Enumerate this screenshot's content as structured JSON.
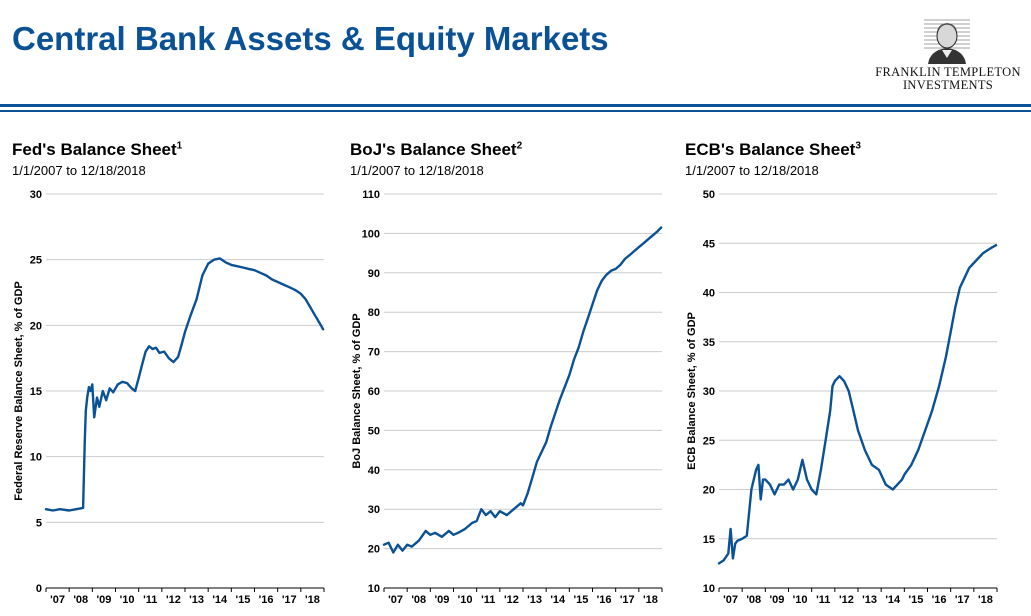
{
  "page_title": "Central Bank Assets & Equity Markets",
  "logo": {
    "line1": "FRANKLIN TEMPLETON",
    "line2": "INVESTMENTS",
    "icon": "franklin-portrait-icon"
  },
  "colors": {
    "accent": "#0a5195",
    "grid": "#cccccc"
  },
  "chart_data": [
    {
      "type": "line",
      "title": "Fed's Balance Sheet",
      "footnote": "1",
      "subtitle": "1/1/2007 to 12/18/2018",
      "xlabel": "",
      "ylabel": "Federal Reserve Balance Sheet, % of GDP",
      "xlim": [
        2007.0,
        2019.0
      ],
      "ylim": [
        0,
        30
      ],
      "yticks": [
        0,
        5,
        10,
        15,
        20,
        25,
        30
      ],
      "xtick_labels": [
        "'07",
        "'08",
        "'09",
        "'10",
        "'11",
        "'12",
        "'13",
        "'14",
        "'15",
        "'16",
        "'17",
        "'18"
      ],
      "grid": true,
      "series": [
        {
          "x": [
            2007.0,
            2007.3,
            2007.6,
            2008.0,
            2008.3,
            2008.6,
            2008.67,
            2008.72,
            2008.78,
            2008.85,
            2008.92,
            2009.0,
            2009.08,
            2009.2,
            2009.3,
            2009.45,
            2009.6,
            2009.75,
            2009.9,
            2010.1,
            2010.3,
            2010.5,
            2010.7,
            2010.85,
            2011.0,
            2011.15,
            2011.3,
            2011.45,
            2011.6,
            2011.75,
            2011.9,
            2012.1,
            2012.3,
            2012.5,
            2012.7,
            2012.85,
            2013.0,
            2013.25,
            2013.5,
            2013.75,
            2014.0,
            2014.25,
            2014.5,
            2014.75,
            2015.0,
            2015.25,
            2015.5,
            2015.75,
            2016.0,
            2016.25,
            2016.5,
            2016.75,
            2017.0,
            2017.25,
            2017.5,
            2017.75,
            2018.0,
            2018.2,
            2018.4,
            2018.6,
            2018.8,
            2018.96
          ],
          "values": [
            6.0,
            5.9,
            6.0,
            5.9,
            6.0,
            6.1,
            11.0,
            13.5,
            14.5,
            15.3,
            15.0,
            15.5,
            13.0,
            14.5,
            13.8,
            15.0,
            14.3,
            15.2,
            14.9,
            15.5,
            15.7,
            15.6,
            15.2,
            15.0,
            16.0,
            17.0,
            18.0,
            18.4,
            18.2,
            18.3,
            17.9,
            18.0,
            17.5,
            17.2,
            17.6,
            18.5,
            19.5,
            20.8,
            22.0,
            23.8,
            24.7,
            25.0,
            25.1,
            24.8,
            24.6,
            24.5,
            24.4,
            24.3,
            24.2,
            24.0,
            23.8,
            23.5,
            23.3,
            23.1,
            22.9,
            22.7,
            22.4,
            22.0,
            21.4,
            20.8,
            20.2,
            19.7
          ]
        }
      ]
    },
    {
      "type": "line",
      "title": "BoJ's Balance Sheet",
      "footnote": "2",
      "subtitle": "1/1/2007 to 12/18/2018",
      "xlabel": "",
      "ylabel": "BoJ Balance Sheet, % of GDP",
      "xlim": [
        2007.0,
        2019.0
      ],
      "ylim": [
        10,
        110
      ],
      "yticks": [
        10,
        20,
        30,
        40,
        50,
        60,
        70,
        80,
        90,
        100,
        110
      ],
      "xtick_labels": [
        "'07",
        "'08",
        "'09",
        "'10",
        "'11",
        "'12",
        "'13",
        "'14",
        "'15",
        "'16",
        "'17",
        "'18"
      ],
      "grid": true,
      "series": [
        {
          "x": [
            2007.0,
            2007.2,
            2007.4,
            2007.6,
            2007.8,
            2008.0,
            2008.2,
            2008.5,
            2008.8,
            2009.0,
            2009.2,
            2009.5,
            2009.8,
            2010.0,
            2010.2,
            2010.5,
            2010.8,
            2011.0,
            2011.2,
            2011.4,
            2011.6,
            2011.8,
            2012.0,
            2012.3,
            2012.6,
            2012.9,
            2013.0,
            2013.2,
            2013.4,
            2013.6,
            2013.8,
            2014.0,
            2014.2,
            2014.4,
            2014.6,
            2014.8,
            2015.0,
            2015.2,
            2015.4,
            2015.6,
            2015.8,
            2016.0,
            2016.2,
            2016.4,
            2016.6,
            2016.8,
            2017.0,
            2017.2,
            2017.4,
            2017.6,
            2017.8,
            2018.0,
            2018.2,
            2018.4,
            2018.6,
            2018.8,
            2018.96
          ],
          "values": [
            21.0,
            21.5,
            19.0,
            21.0,
            19.5,
            21.0,
            20.5,
            22.0,
            24.5,
            23.5,
            24.0,
            23.0,
            24.5,
            23.5,
            24.0,
            25.0,
            26.5,
            27.0,
            30.0,
            28.5,
            29.5,
            28.0,
            29.5,
            28.5,
            30.0,
            31.5,
            31.0,
            34.0,
            38.0,
            42.0,
            44.5,
            47.0,
            51.0,
            54.5,
            58.0,
            61.0,
            64.0,
            68.0,
            71.0,
            75.0,
            78.5,
            82.0,
            85.5,
            88.0,
            89.5,
            90.5,
            91.0,
            92.0,
            93.5,
            94.5,
            95.5,
            96.5,
            97.5,
            98.5,
            99.5,
            100.5,
            101.5
          ]
        }
      ]
    },
    {
      "type": "line",
      "title": "ECB's Balance Sheet",
      "footnote": "3",
      "subtitle": "1/1/2007 to 12/18/2018",
      "xlabel": "",
      "ylabel": "ECB Balance Sheet, % of GDP",
      "xlim": [
        2007.0,
        2019.0
      ],
      "ylim": [
        10,
        50
      ],
      "yticks": [
        10,
        15,
        20,
        25,
        30,
        35,
        40,
        45,
        50
      ],
      "xtick_labels": [
        "'07",
        "'08",
        "'09",
        "'10",
        "'11",
        "'12",
        "'13",
        "'14",
        "'15",
        "'16",
        "'17",
        "'18"
      ],
      "grid": true,
      "series": [
        {
          "x": [
            2007.0,
            2007.2,
            2007.4,
            2007.5,
            2007.6,
            2007.7,
            2007.8,
            2008.0,
            2008.2,
            2008.4,
            2008.6,
            2008.7,
            2008.8,
            2008.9,
            2009.0,
            2009.2,
            2009.4,
            2009.6,
            2009.8,
            2010.0,
            2010.2,
            2010.4,
            2010.6,
            2010.8,
            2011.0,
            2011.2,
            2011.4,
            2011.6,
            2011.8,
            2011.9,
            2012.0,
            2012.2,
            2012.4,
            2012.6,
            2012.8,
            2013.0,
            2013.3,
            2013.6,
            2013.9,
            2014.2,
            2014.5,
            2014.7,
            2014.9,
            2015.0,
            2015.3,
            2015.6,
            2015.9,
            2016.2,
            2016.5,
            2016.8,
            2017.0,
            2017.2,
            2017.4,
            2017.6,
            2017.8,
            2018.0,
            2018.2,
            2018.4,
            2018.6,
            2018.8,
            2018.96
          ],
          "values": [
            12.5,
            12.8,
            13.5,
            16.0,
            13.0,
            14.5,
            14.8,
            15.0,
            15.3,
            20.0,
            22.0,
            22.5,
            19.0,
            21.0,
            21.0,
            20.5,
            19.5,
            20.5,
            20.5,
            21.0,
            20.0,
            21.0,
            23.0,
            21.0,
            20.0,
            19.5,
            22.0,
            25.0,
            28.0,
            30.5,
            31.0,
            31.5,
            31.0,
            30.0,
            28.0,
            26.0,
            24.0,
            22.5,
            22.0,
            20.5,
            20.0,
            20.5,
            21.0,
            21.5,
            22.5,
            24.0,
            26.0,
            28.0,
            30.5,
            33.5,
            36.0,
            38.5,
            40.5,
            41.5,
            42.5,
            43.0,
            43.5,
            44.0,
            44.3,
            44.6,
            44.8
          ]
        }
      ]
    }
  ]
}
